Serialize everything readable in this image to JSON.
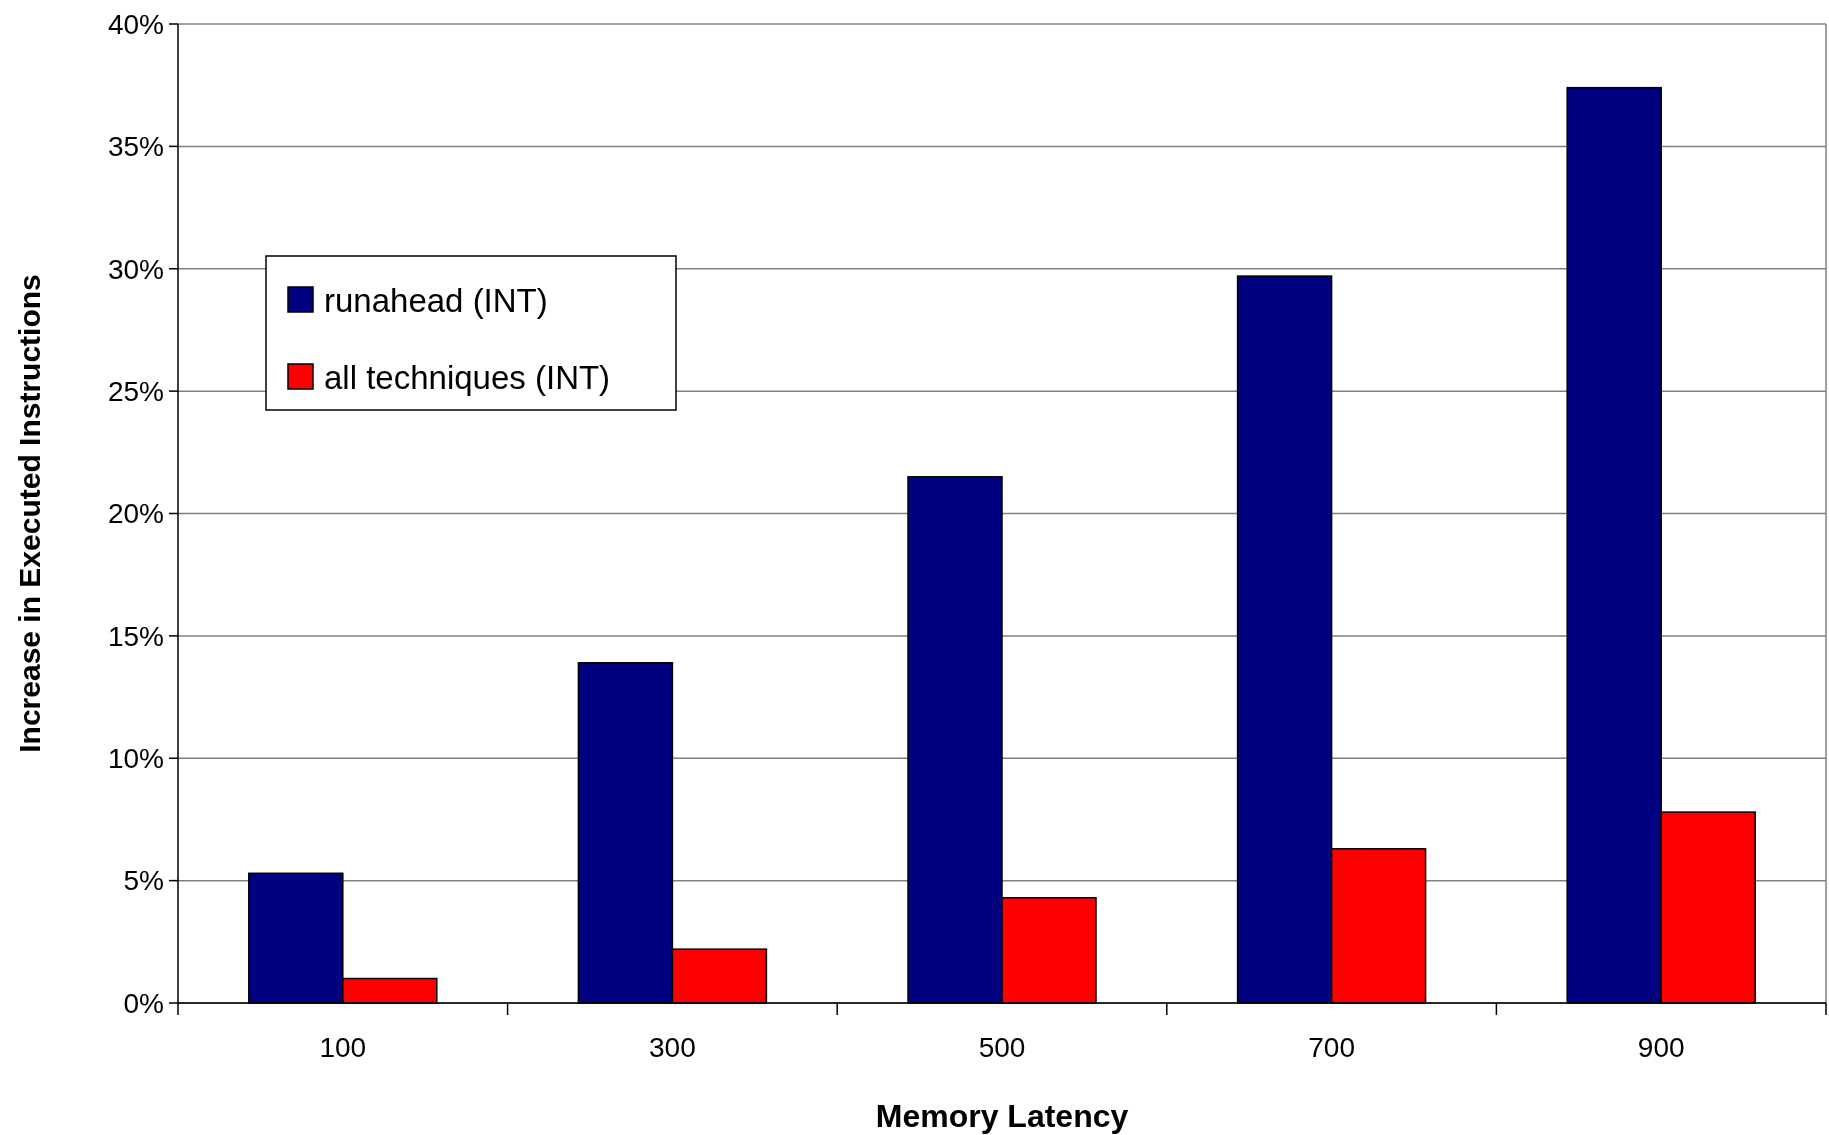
{
  "chart_data": {
    "type": "bar",
    "xlabel": "Memory Latency",
    "ylabel": "Increase in Executed Instructions",
    "categories": [
      "100",
      "300",
      "500",
      "700",
      "900"
    ],
    "series": [
      {
        "name": "runahead (INT)",
        "color": "#000080",
        "values": [
          5.3,
          13.9,
          21.5,
          29.7,
          37.4
        ]
      },
      {
        "name": "all techniques (INT)",
        "color": "#ff0000",
        "values": [
          1.0,
          2.2,
          4.3,
          6.3,
          7.8
        ]
      }
    ],
    "ylim": [
      0,
      40
    ],
    "yticks": [
      {
        "value": 0,
        "label": "0%"
      },
      {
        "value": 5,
        "label": "5%"
      },
      {
        "value": 10,
        "label": "10%"
      },
      {
        "value": 15,
        "label": "15%"
      },
      {
        "value": 20,
        "label": "20%"
      },
      {
        "value": 25,
        "label": "25%"
      },
      {
        "value": 30,
        "label": "30%"
      },
      {
        "value": 35,
        "label": "35%"
      },
      {
        "value": 40,
        "label": "40%"
      }
    ],
    "grid": "y",
    "legend": "top left"
  }
}
